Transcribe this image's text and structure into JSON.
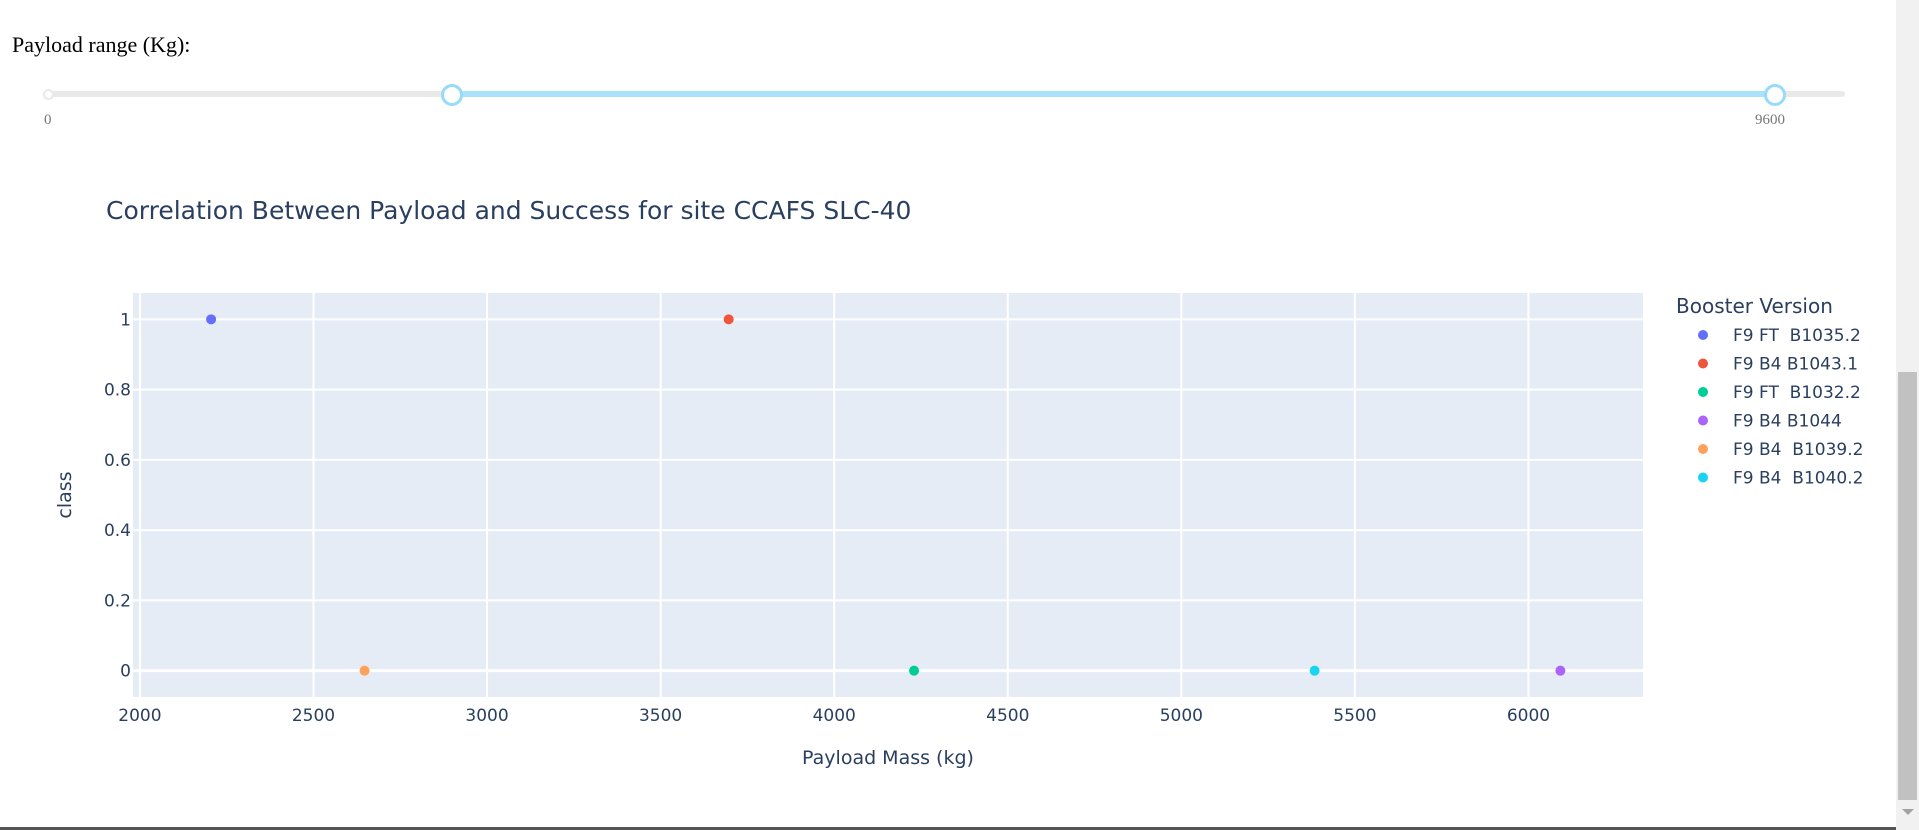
{
  "payload_label": "Payload range (Kg):",
  "slider": {
    "min": 0,
    "max": 9600,
    "value_low": 2236,
    "value_high": 9600,
    "mark_min_label": "0",
    "mark_max_label": "9600",
    "track_color": "#abe2fb",
    "handle_color": "#96dbfa"
  },
  "chart_data": {
    "type": "scatter",
    "title": "Correlation Between Payload and Success for site CCAFS SLC-40",
    "xlabel": "Payload Mass (kg)",
    "ylabel": "class",
    "xlim": [
      1980,
      6330
    ],
    "ylim": [
      -0.075,
      1.075
    ],
    "x_ticks": [
      2000,
      2500,
      3000,
      3500,
      4000,
      4500,
      5000,
      5500,
      6000
    ],
    "y_ticks": [
      0,
      0.2,
      0.4,
      0.6,
      0.8,
      1
    ],
    "x_tick_labels": [
      "2000",
      "2500",
      "3000",
      "3500",
      "4000",
      "4500",
      "5000",
      "5500",
      "6000"
    ],
    "y_tick_labels": [
      "0",
      "0.2",
      "0.4",
      "0.6",
      "0.8",
      "1"
    ],
    "grid": true,
    "plot_bg": "#e5ecf6",
    "legend_title": "Booster Version",
    "legend_position": "right",
    "series": [
      {
        "name": "F9 FT  B1035.2",
        "color": "#636efa",
        "x": [
          2205
        ],
        "y": [
          1
        ]
      },
      {
        "name": "F9 B4 B1043.1",
        "color": "#ef553b",
        "x": [
          3696
        ],
        "y": [
          1
        ]
      },
      {
        "name": "F9 FT  B1032.2",
        "color": "#00cc96",
        "x": [
          4230
        ],
        "y": [
          0
        ]
      },
      {
        "name": "F9 B4 B1044",
        "color": "#ab63fa",
        "x": [
          6092
        ],
        "y": [
          0
        ]
      },
      {
        "name": "F9 B4  B1039.2",
        "color": "#ffa15a",
        "x": [
          2647
        ],
        "y": [
          0
        ]
      },
      {
        "name": "F9 B4  B1040.2",
        "color": "#19d3f3",
        "x": [
          5384
        ],
        "y": [
          0
        ]
      }
    ]
  }
}
